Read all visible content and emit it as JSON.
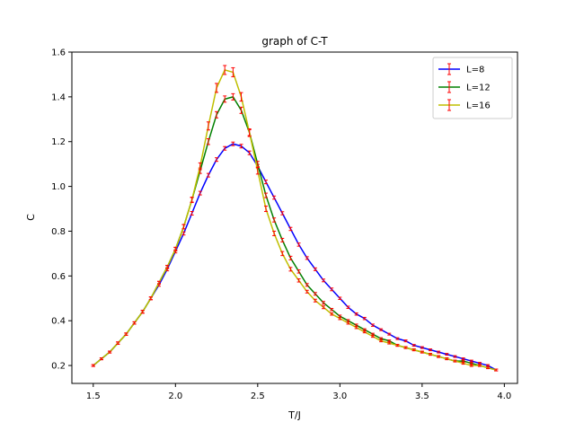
{
  "chart_data": {
    "type": "line",
    "title": "graph of C-T",
    "xlabel": "T/J",
    "ylabel": "C",
    "xlim": [
      1.37,
      4.08
    ],
    "ylim": [
      0.12,
      1.6
    ],
    "xticks": [
      1.5,
      2.0,
      2.5,
      3.0,
      3.5,
      4.0
    ],
    "yticks": [
      0.2,
      0.4,
      0.6,
      0.8,
      1.0,
      1.2,
      1.4,
      1.6
    ],
    "x_tick_labels": [
      "1.5",
      "2.0",
      "2.5",
      "3.0",
      "3.5",
      "4.0"
    ],
    "y_tick_labels": [
      "0.2",
      "0.4",
      "0.6",
      "0.8",
      "1.0",
      "1.2",
      "1.4",
      "1.6"
    ],
    "grid": false,
    "legend_position": "top-right",
    "error_bars": true,
    "errorbar_color": "#ff0000",
    "x": [
      1.5,
      1.55,
      1.6,
      1.65,
      1.7,
      1.75,
      1.8,
      1.85,
      1.9,
      1.95,
      2.0,
      2.05,
      2.1,
      2.15,
      2.2,
      2.25,
      2.3,
      2.35,
      2.4,
      2.45,
      2.5,
      2.55,
      2.6,
      2.65,
      2.7,
      2.75,
      2.8,
      2.85,
      2.9,
      2.95,
      3.0,
      3.05,
      3.1,
      3.15,
      3.2,
      3.25,
      3.3,
      3.35,
      3.4,
      3.45,
      3.5,
      3.55,
      3.6,
      3.65,
      3.7,
      3.75,
      3.8,
      3.85,
      3.9,
      3.95
    ],
    "series": [
      {
        "name": "L=8",
        "color": "#0000ff",
        "values": [
          0.2,
          0.23,
          0.26,
          0.3,
          0.34,
          0.39,
          0.44,
          0.5,
          0.56,
          0.63,
          0.71,
          0.79,
          0.88,
          0.97,
          1.05,
          1.12,
          1.17,
          1.19,
          1.18,
          1.15,
          1.09,
          1.02,
          0.95,
          0.88,
          0.81,
          0.74,
          0.68,
          0.63,
          0.58,
          0.54,
          0.5,
          0.46,
          0.43,
          0.41,
          0.38,
          0.36,
          0.34,
          0.32,
          0.31,
          0.29,
          0.28,
          0.27,
          0.26,
          0.25,
          0.24,
          0.23,
          0.22,
          0.21,
          0.2,
          0.18
        ],
        "errors": [
          0.004,
          0.004,
          0.004,
          0.005,
          0.005,
          0.005,
          0.006,
          0.006,
          0.006,
          0.007,
          0.007,
          0.007,
          0.008,
          0.008,
          0.008,
          0.008,
          0.008,
          0.008,
          0.008,
          0.008,
          0.008,
          0.008,
          0.007,
          0.007,
          0.007,
          0.007,
          0.006,
          0.006,
          0.006,
          0.006,
          0.005,
          0.005,
          0.005,
          0.005,
          0.005,
          0.004,
          0.004,
          0.004,
          0.004,
          0.004,
          0.004,
          0.004,
          0.004,
          0.004,
          0.004,
          0.004,
          0.004,
          0.004,
          0.004,
          0.004
        ]
      },
      {
        "name": "L=12",
        "color": "#008000",
        "values": [
          0.2,
          0.23,
          0.26,
          0.3,
          0.34,
          0.39,
          0.44,
          0.5,
          0.57,
          0.64,
          0.72,
          0.82,
          0.94,
          1.07,
          1.2,
          1.32,
          1.39,
          1.4,
          1.34,
          1.24,
          1.1,
          0.96,
          0.85,
          0.76,
          0.68,
          0.62,
          0.56,
          0.52,
          0.48,
          0.45,
          0.42,
          0.4,
          0.38,
          0.36,
          0.34,
          0.32,
          0.31,
          0.29,
          0.28,
          0.27,
          0.26,
          0.25,
          0.24,
          0.23,
          0.22,
          0.22,
          0.21,
          0.2,
          0.19,
          0.18
        ],
        "errors": [
          0.004,
          0.004,
          0.004,
          0.005,
          0.005,
          0.005,
          0.006,
          0.006,
          0.006,
          0.007,
          0.008,
          0.009,
          0.01,
          0.012,
          0.013,
          0.014,
          0.014,
          0.014,
          0.014,
          0.013,
          0.012,
          0.01,
          0.009,
          0.008,
          0.008,
          0.007,
          0.006,
          0.006,
          0.006,
          0.005,
          0.005,
          0.005,
          0.005,
          0.004,
          0.004,
          0.004,
          0.004,
          0.004,
          0.004,
          0.004,
          0.004,
          0.004,
          0.004,
          0.004,
          0.004,
          0.004,
          0.004,
          0.004,
          0.004,
          0.004
        ]
      },
      {
        "name": "L=16",
        "color": "#bfbf00",
        "values": [
          0.2,
          0.23,
          0.26,
          0.3,
          0.34,
          0.39,
          0.44,
          0.5,
          0.57,
          0.64,
          0.72,
          0.82,
          0.94,
          1.09,
          1.27,
          1.44,
          1.52,
          1.51,
          1.4,
          1.24,
          1.07,
          0.9,
          0.79,
          0.7,
          0.63,
          0.58,
          0.53,
          0.49,
          0.46,
          0.43,
          0.41,
          0.39,
          0.37,
          0.35,
          0.33,
          0.31,
          0.3,
          0.29,
          0.28,
          0.27,
          0.26,
          0.25,
          0.24,
          0.23,
          0.22,
          0.21,
          0.2,
          0.2,
          0.19,
          0.18
        ],
        "errors": [
          0.004,
          0.004,
          0.004,
          0.005,
          0.005,
          0.005,
          0.006,
          0.006,
          0.006,
          0.007,
          0.008,
          0.01,
          0.012,
          0.015,
          0.018,
          0.02,
          0.02,
          0.02,
          0.019,
          0.017,
          0.015,
          0.012,
          0.01,
          0.009,
          0.008,
          0.007,
          0.006,
          0.006,
          0.006,
          0.005,
          0.005,
          0.005,
          0.005,
          0.004,
          0.004,
          0.004,
          0.004,
          0.004,
          0.004,
          0.004,
          0.004,
          0.004,
          0.004,
          0.004,
          0.004,
          0.004,
          0.004,
          0.004,
          0.004,
          0.004
        ]
      }
    ]
  }
}
